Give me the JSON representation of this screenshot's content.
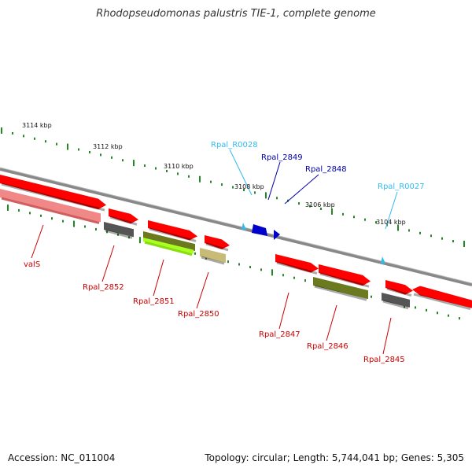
{
  "title": "Rhodopseudomonas palustris TIE-1, complete genome",
  "footer": {
    "accession": "Accession: NC_011004",
    "stats": "Topology: circular; Length: 5,744,041 bp; Genes: 5,305"
  },
  "colors": {
    "red_gene": "#ff0000",
    "blue_gene": "#0000cc",
    "cyan_gene": "#33bbee",
    "pink_gene": "#f08888",
    "olive_gene": "#6b7a1e",
    "lime_gene": "#aaff22",
    "khaki_gene": "#c8bb77",
    "gray_gene": "#555555",
    "tick_green": "#228822",
    "backbone": "#888888"
  },
  "scale_labels": [
    "3114 kbp",
    "3112 kbp",
    "3110 kbp",
    "3108 kbp",
    "3106 kbp",
    "3104 kbp"
  ],
  "gene_labels": [
    {
      "text": "valS",
      "color": "red"
    },
    {
      "text": "Rpal_2852",
      "color": "red"
    },
    {
      "text": "Rpal_2851",
      "color": "red"
    },
    {
      "text": "Rpal_2850",
      "color": "red"
    },
    {
      "text": "Rpal_2847",
      "color": "red"
    },
    {
      "text": "Rpal_2846",
      "color": "red"
    },
    {
      "text": "Rpal_2845",
      "color": "red"
    },
    {
      "text": "Rpal_R0028",
      "color": "cyan"
    },
    {
      "text": "Rpal_2849",
      "color": "blue"
    },
    {
      "text": "Rpal_2848",
      "color": "blue"
    },
    {
      "text": "Rpal_R0027",
      "color": "cyan"
    }
  ]
}
